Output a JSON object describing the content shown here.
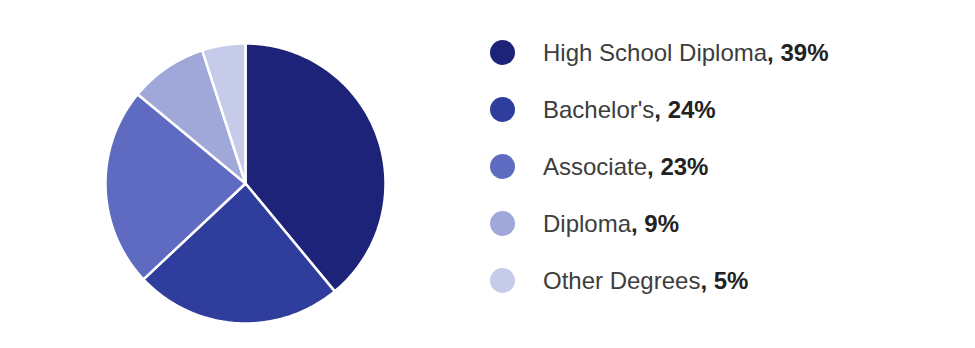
{
  "chart_data": {
    "type": "pie",
    "categories": [
      "High School Diploma",
      "Bachelor's",
      "Associate",
      "Diploma",
      "Other Degrees"
    ],
    "values": [
      39,
      24,
      23,
      9,
      5
    ],
    "value_labels": [
      "39%",
      "24%",
      "23%",
      "9%",
      "5%"
    ],
    "colors": [
      "#1c2379",
      "#2f3d9c",
      "#5e6bc0",
      "#a0a8da",
      "#c6cbea"
    ],
    "legend": "right"
  }
}
